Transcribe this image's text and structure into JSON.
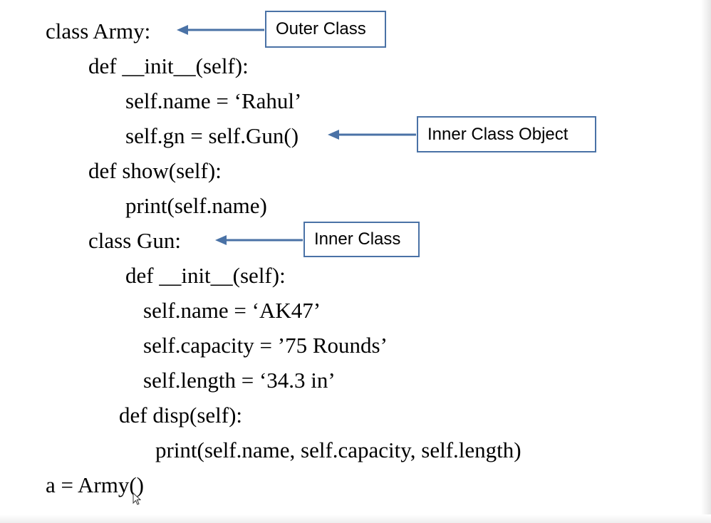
{
  "code": {
    "lines": [
      "class Army:",
      "def __init__(self):",
      "self.name = ‘Rahul’",
      "self.gn = self.Gun()",
      "def show(self):",
      "print(self.name)",
      "class Gun:",
      "def __init__(self):",
      "self.name = ‘AK47’",
      "self.capacity = ’75 Rounds’",
      "self.length = ‘34.3 in’",
      "def disp(self):",
      "print(self.name, self.capacity, self.length)",
      "a = Army()"
    ]
  },
  "callouts": {
    "outer_class": "Outer Class",
    "inner_class_object": "Inner Class Object",
    "inner_class": "Inner Class"
  },
  "colors": {
    "callout_border": "#4a72a6",
    "arrow": "#4a72a6",
    "text": "#000000",
    "background": "#ffffff"
  }
}
